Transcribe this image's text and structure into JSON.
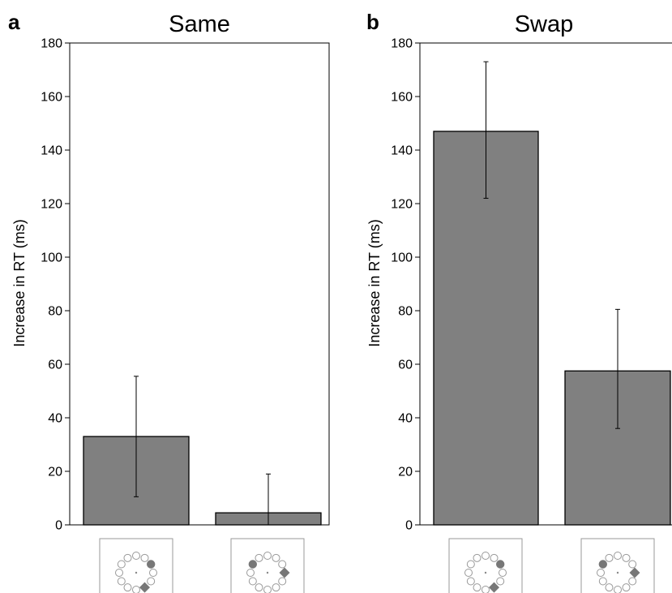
{
  "chart_data": [
    {
      "type": "bar",
      "panel_letter": "a",
      "title": "Same",
      "xlabel": "",
      "ylabel": "Increase in RT (ms)",
      "ylim": [
        0,
        180
      ],
      "yticks": [
        0,
        20,
        40,
        60,
        80,
        100,
        120,
        140,
        160,
        180
      ],
      "categories": [
        "same-hemifield",
        "opposite-hemifield"
      ],
      "values": [
        33,
        4.5
      ],
      "error_low": [
        10.5,
        0
      ],
      "error_high": [
        55.5,
        19
      ],
      "bar_color": "#808080",
      "grid": false,
      "legend": "none",
      "category_icons": [
        {
          "circle": "top-right",
          "diamond": "bottom-right"
        },
        {
          "circle": "top-left",
          "diamond": "right"
        }
      ]
    },
    {
      "type": "bar",
      "panel_letter": "b",
      "title": "Swap",
      "xlabel": "",
      "ylabel": "Increase in RT (ms)",
      "ylim": [
        0,
        180
      ],
      "yticks": [
        0,
        20,
        40,
        60,
        80,
        100,
        120,
        140,
        160,
        180
      ],
      "categories": [
        "same-hemifield",
        "opposite-hemifield"
      ],
      "values": [
        147,
        57.5
      ],
      "error_low": [
        122,
        36
      ],
      "error_high": [
        173,
        80.5
      ],
      "bar_color": "#808080",
      "grid": false,
      "legend": "none",
      "category_icons": [
        {
          "circle": "top-right",
          "diamond": "bottom-right"
        },
        {
          "circle": "top-left",
          "diamond": "right"
        }
      ]
    }
  ]
}
